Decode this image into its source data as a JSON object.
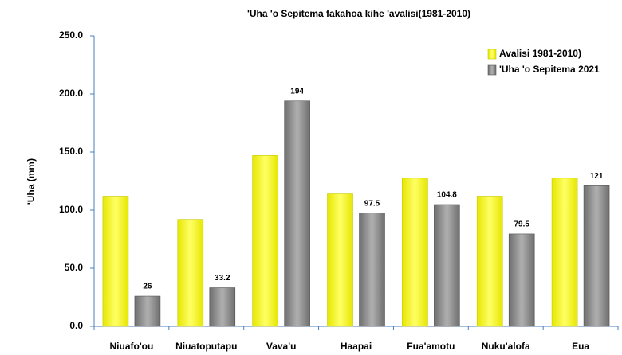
{
  "chart_data": {
    "type": "bar",
    "title": "'Uha 'o Sepitema fakahoa kihe 'avalisi(1981-2010)",
    "y_label": "'Uha  (mm)",
    "categories": [
      "Niuafo'ou",
      "Niuatoputapu",
      "Vava'u",
      "Haapai",
      "Fua'amotu",
      "Nuku'alofa",
      "Eua"
    ],
    "series": [
      {
        "name": "Avalisi 1981-2010)",
        "color": "#ffff00",
        "values": [
          112,
          92,
          147,
          114,
          127.5,
          112,
          127.5
        ]
      },
      {
        "name": "'Uha 'o Sepitema 2021",
        "color": "#8c8c8c",
        "values": [
          26,
          33.2,
          194,
          97.5,
          104.8,
          79.5,
          121
        ],
        "show_value_labels": true
      }
    ],
    "ylim": [
      0,
      250
    ],
    "yticks": [
      {
        "value": 0,
        "label": "0.0"
      },
      {
        "value": 50,
        "label": "50.0"
      },
      {
        "value": 100,
        "label": "100.0"
      },
      {
        "value": 150,
        "label": "150.0"
      },
      {
        "value": 200,
        "label": "200.0"
      },
      {
        "value": 250,
        "label": "250.0"
      }
    ],
    "legend": "top-right",
    "grid": false
  }
}
